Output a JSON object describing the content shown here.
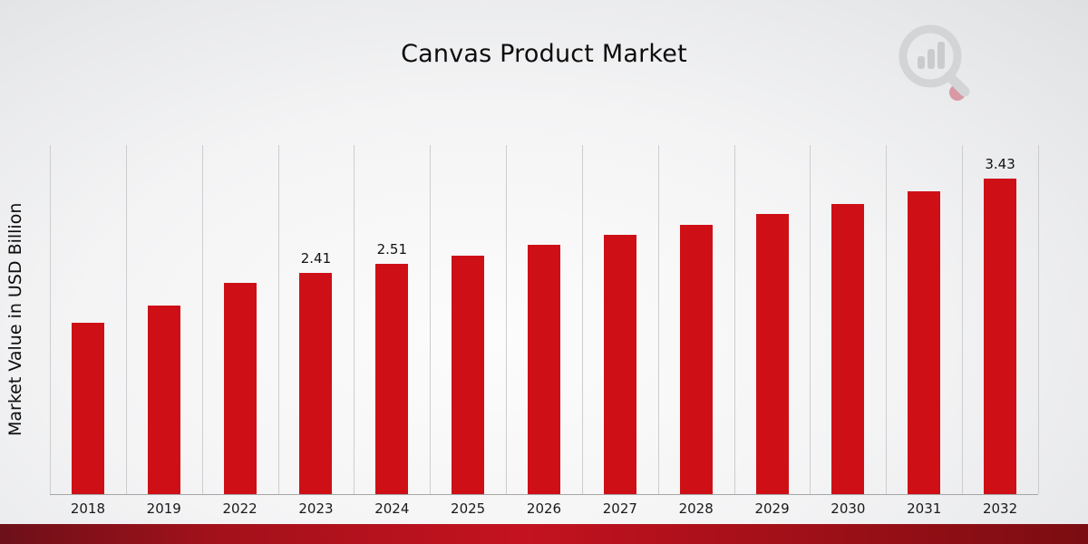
{
  "title": "Canvas Product Market",
  "ylabel": "Market Value in USD Billion",
  "chart_data": {
    "type": "bar",
    "title": "Canvas Product Market",
    "xlabel": "",
    "ylabel": "Market Value in USD Billion",
    "categories": [
      "2018",
      "2019",
      "2022",
      "2023",
      "2024",
      "2025",
      "2026",
      "2027",
      "2028",
      "2029",
      "2030",
      "2031",
      "2032"
    ],
    "values": [
      1.87,
      2.05,
      2.3,
      2.41,
      2.51,
      2.6,
      2.71,
      2.82,
      2.93,
      3.05,
      3.16,
      3.3,
      3.43
    ],
    "data_labels": [
      "",
      "",
      "",
      "2.41",
      "2.51",
      "",
      "",
      "",
      "",
      "",
      "",
      "",
      "3.43"
    ],
    "ylim": [
      0,
      3.8
    ],
    "bar_color": "#ce1016",
    "grid": "vertical-only",
    "legend": "none"
  },
  "branding": {
    "logo_icon": "magnifier-bar-chart-icon",
    "footer_band_color_left": "#6d1019",
    "footer_band_color_mid": "#c41220",
    "footer_band_color_right": "#7a0d12"
  }
}
